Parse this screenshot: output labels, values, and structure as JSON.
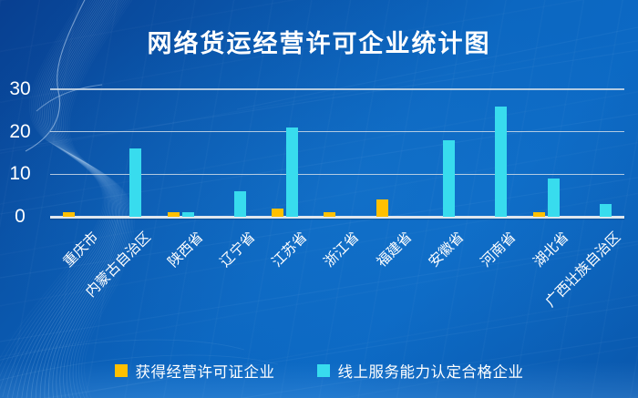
{
  "title": "网络货运经营许可企业统计图",
  "colors": {
    "licensed": "#FFC000",
    "qualified": "#38DCEE",
    "background_dark": "#0A4FA3",
    "background_light": "#0C69C4",
    "gridline": "#D7E0E9",
    "text": "#FFFFFF"
  },
  "chart_data": {
    "type": "bar",
    "title": "网络货运经营许可企业统计图",
    "categories": [
      "重庆市",
      "内蒙古自治区",
      "陕西省",
      "辽宁省",
      "江苏省",
      "浙江省",
      "福建省",
      "安徽省",
      "河南省",
      "湖北省",
      "广西壮族自治区"
    ],
    "series": [
      {
        "name": "获得经营许可证企业",
        "color": "#FFC000",
        "values": [
          1,
          0,
          1,
          0,
          2,
          1,
          4,
          0,
          0,
          1,
          0
        ]
      },
      {
        "name": "线上服务能力认定合格企业",
        "color": "#38DCEE",
        "values": [
          0,
          16,
          1,
          6,
          21,
          0,
          0,
          18,
          26,
          9,
          3
        ]
      }
    ],
    "xlabel": "",
    "ylabel": "",
    "ylim": [
      0,
      30
    ],
    "yticks": [
      0,
      10,
      20,
      30
    ],
    "grid": true,
    "legend_position": "bottom"
  }
}
